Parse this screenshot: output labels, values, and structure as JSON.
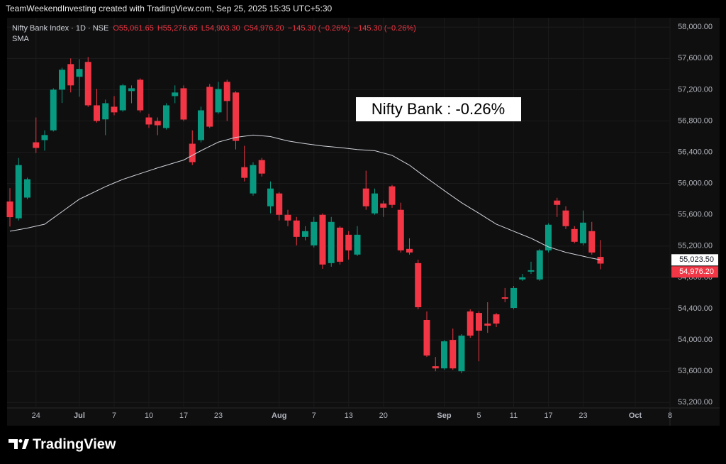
{
  "header": "TeamWeekendInvesting created with TradingView.com, Sep 25, 2025 15:35 UTC+5:30",
  "watermark": "TradingView",
  "chart_data": {
    "type": "candlestick",
    "symbol": "Nifty Bank Index · 1D · NSE",
    "ohlc_labels": [
      "O55,061.65",
      "H55,276.65",
      "L54,903.30",
      "C54,976.20",
      "−145.30 (−0.26%)",
      "−145.30 (−0.26%)"
    ],
    "annotation": "Nifty Bank : -0.26%",
    "up_color": "#089981",
    "down_color": "#f23645",
    "categories": [
      null,
      null,
      null,
      "24",
      null,
      null,
      null,
      null,
      "Jul",
      null,
      null,
      null,
      "7",
      null,
      null,
      null,
      "10",
      null,
      null,
      null,
      "17",
      null,
      null,
      null,
      "23",
      null,
      null,
      null,
      null,
      null,
      null,
      "Aug",
      null,
      null,
      null,
      "7",
      null,
      null,
      null,
      "13",
      null,
      null,
      null,
      "20",
      null,
      null,
      null,
      null,
      null,
      null,
      "Sep",
      null,
      null,
      null,
      "5",
      null,
      null,
      null,
      "11",
      null,
      null,
      null,
      "17",
      null,
      null,
      null,
      "23",
      null,
      null,
      null,
      null,
      null,
      "Oct",
      null,
      null,
      null,
      "8"
    ],
    "open": [
      55770,
      55555,
      55820,
      56527,
      56555,
      56680,
      57200,
      57527,
      57365,
      57555,
      57000,
      56820,
      56982,
      56936,
      57182,
      57327,
      56845,
      56800,
      56710,
      57118,
      57218,
      56509,
      56555,
      57236,
      56910,
      57300,
      57164,
      56209,
      55873,
      56300,
      55709,
      55873,
      55600,
      55527,
      55318,
      55209,
      55600,
      54982,
      55436,
      55345,
      55091,
      55936,
      55618,
      55745,
      55964,
      55664,
      55164,
      54982,
      54255,
      53664,
      53636,
      54000,
      53600,
      54364,
      54345,
      54209,
      54327,
      54545,
      54409,
      54773,
      54873,
      54773,
      55145,
      55782,
      55655,
      55418,
      55236,
      55391,
      55061.65,
      null,
      null,
      null,
      null,
      null,
      null,
      null,
      null
    ],
    "high": [
      55940,
      56327,
      56075,
      56845,
      56680,
      57218,
      57480,
      57600,
      57590,
      57618,
      57210,
      57073,
      57118,
      57273,
      57255,
      57345,
      56890,
      56845,
      57027,
      57255,
      57255,
      56680,
      56982,
      57273,
      57300,
      57327,
      57182,
      56482,
      56273,
      56327,
      56027,
      55890,
      55664,
      55573,
      55455,
      55573,
      55618,
      55573,
      55455,
      55391,
      55455,
      56164,
      55936,
      55782,
      55982,
      55755,
      55300,
      55027,
      54364,
      53782,
      54000,
      54145,
      54073,
      54391,
      54364,
      54482,
      54345,
      54664,
      54691,
      54845,
      55000,
      55164,
      55491,
      55818,
      55709,
      55455,
      55655,
      55509,
      55276.65,
      null,
      null,
      null,
      null,
      null,
      null,
      null,
      null
    ],
    "low": [
      55450,
      55527,
      55800,
      56390,
      56420,
      56665,
      57030,
      57165,
      57110,
      56980,
      56780,
      56618,
      56873,
      56918,
      57027,
      56909,
      56710,
      56618,
      56690,
      57027,
      56800,
      56236,
      56527,
      56710,
      56891,
      56800,
      56436,
      56027,
      55845,
      56090,
      55618,
      55527,
      55455,
      55209,
      55273,
      55182,
      54909,
      54936,
      54964,
      55027,
      55073,
      55664,
      55600,
      55573,
      55690,
      55118,
      55091,
      54391,
      53782,
      53600,
      53618,
      53618,
      53573,
      54027,
      53727,
      54091,
      54164,
      54482,
      54391,
      54755,
      54845,
      54755,
      55118,
      55573,
      55418,
      55236,
      55209,
      55091,
      54903.3,
      null,
      null,
      null,
      null,
      null,
      null,
      null,
      null
    ],
    "close": [
      55570,
      56236,
      56055,
      56455,
      56620,
      57200,
      57455,
      57255,
      57465,
      57000,
      56800,
      57027,
      56910,
      57255,
      57218,
      56936,
      56755,
      56745,
      57000,
      57164,
      56818,
      56273,
      56936,
      56727,
      57209,
      57055,
      56545,
      56073,
      56236,
      56127,
      55936,
      55600,
      55527,
      55318,
      55391,
      55509,
      54964,
      55509,
      55000,
      55145,
      55345,
      55709,
      55873,
      55691,
      55727,
      55145,
      55118,
      54418,
      53800,
      53636,
      53982,
      53636,
      54055,
      54055,
      54118,
      54182,
      54209,
      54527,
      54664,
      54800,
      54891,
      55145,
      55473,
      55727,
      55455,
      55255,
      55500,
      55118,
      54976.2,
      null,
      null,
      null,
      null,
      null,
      null,
      null,
      null
    ],
    "last_label": "54,976.20",
    "overlay": {
      "name": "SMA",
      "color": "#d1d4dc",
      "last_label": "55,023.50",
      "values": [
        55390,
        55410,
        55430,
        55455,
        55480,
        55560,
        55640,
        55720,
        55800,
        55853,
        55907,
        55960,
        56007,
        56053,
        56090,
        56127,
        56163,
        56200,
        56233,
        56267,
        56300,
        56360,
        56420,
        56475,
        56530,
        56560,
        56590,
        56605,
        56620,
        56610,
        56600,
        56572,
        56545,
        56527,
        56510,
        56495,
        56480,
        56470,
        56460,
        56447,
        56435,
        56427,
        56420,
        56390,
        56360,
        56297,
        56235,
        56152,
        56070,
        55990,
        55910,
        55832,
        55755,
        55687,
        55620,
        55550,
        55480,
        55435,
        55390,
        55345,
        55300,
        55245,
        55190,
        55155,
        55120,
        55095,
        55070,
        55045,
        55023.5,
        null,
        null,
        null,
        null,
        null,
        null,
        null,
        null
      ]
    },
    "ylim": [
      53130,
      58120
    ],
    "yticks": [
      {
        "value": 53200,
        "label": "53,200.00"
      },
      {
        "value": 53600,
        "label": "53,600.00"
      },
      {
        "value": 54000,
        "label": "54,000.00"
      },
      {
        "value": 54400,
        "label": "54,400.00"
      },
      {
        "value": 54800,
        "label": "54,800.00"
      },
      {
        "value": 55200,
        "label": "55,200.00"
      },
      {
        "value": 55600,
        "label": "55,600.00"
      },
      {
        "value": 56000,
        "label": "56,000.00"
      },
      {
        "value": 56400,
        "label": "56,400.00"
      },
      {
        "value": 56800,
        "label": "56,800.00"
      },
      {
        "value": 57200,
        "label": "57,200.00"
      },
      {
        "value": 57600,
        "label": "57,600.00"
      },
      {
        "value": 58000,
        "label": "58,000.00"
      }
    ],
    "grid": true
  }
}
